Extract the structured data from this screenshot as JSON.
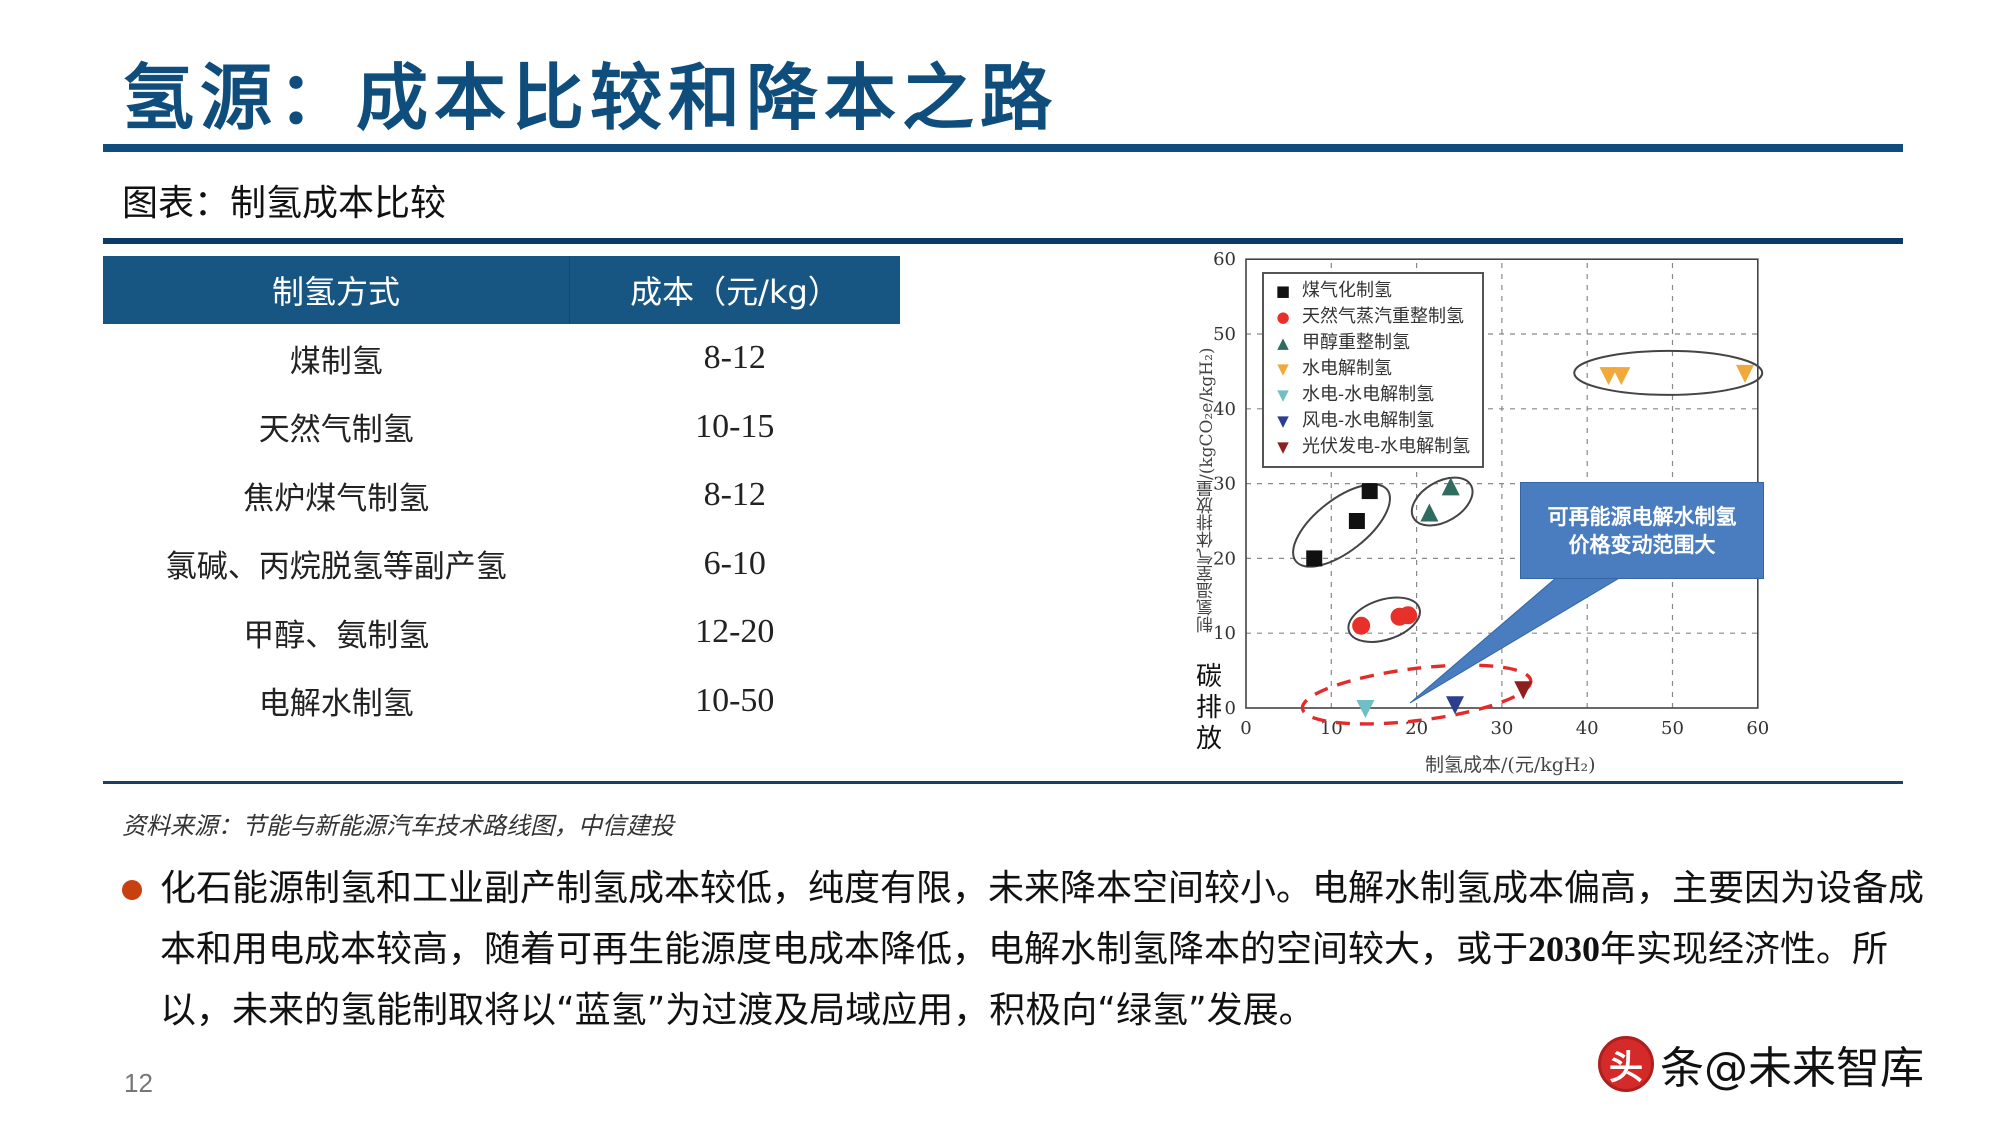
{
  "header": {
    "title": "氢源：成本比较和降本之路",
    "subtitle": "图表：制氢成本比较"
  },
  "table": {
    "columns": [
      "制氢方式",
      "成本（元/kg）"
    ],
    "rows": [
      {
        "method": "煤制氢",
        "cost": "8-12"
      },
      {
        "method": "天然气制氢",
        "cost": "10-15"
      },
      {
        "method": "焦炉煤气制氢",
        "cost": "8-12"
      },
      {
        "method": "氯碱、丙烷脱氢等副产氢",
        "cost": "6-10"
      },
      {
        "method": "甲醇、氨制氢",
        "cost": "12-20"
      },
      {
        "method": "电解水制氢",
        "cost": "10-50"
      }
    ]
  },
  "chart": {
    "y_axis_label": "制氢温室气体排放量/(kgCO₂e/kgH₂)",
    "carbon_label": [
      "碳",
      "排",
      "放"
    ],
    "x_axis_label": "制氢成本/(元/kgH₂)",
    "callout": [
      "可再能源电解水制氢",
      "价格变动范围大"
    ],
    "legend": [
      {
        "label": "煤气化制氢",
        "marker": "■",
        "color": "#111111"
      },
      {
        "label": "天然气蒸汽重整制氢",
        "marker": "●",
        "color": "#e8302b"
      },
      {
        "label": "甲醇重整制氢",
        "marker": "▲",
        "color": "#2f6b5e"
      },
      {
        "label": "水电解制氢",
        "marker": "▼",
        "color": "#f0a93a"
      },
      {
        "label": "水电-水电解制氢",
        "marker": "▼",
        "color": "#6fbfc6"
      },
      {
        "label": "风电-水电解制氢",
        "marker": "▼",
        "color": "#2b3f8f"
      },
      {
        "label": "光伏发电-水电解制氢",
        "marker": "▼",
        "color": "#8e1f1f"
      }
    ]
  },
  "chart_data": {
    "type": "scatter",
    "title": "",
    "xlabel": "制氢成本/(元/kgH₂)",
    "ylabel": "制氢温室气体排放量/(kgCO₂e/kgH₂)",
    "xlim": [
      0,
      60
    ],
    "ylim": [
      0,
      60
    ],
    "x_ticks": [
      0,
      10,
      20,
      30,
      40,
      50,
      60
    ],
    "y_ticks": [
      0,
      10,
      20,
      30,
      40,
      50,
      60
    ],
    "grid": true,
    "legend_position": "upper left",
    "series": [
      {
        "name": "煤气化制氢",
        "marker": "square",
        "color": "#111111",
        "points": [
          [
            8,
            20
          ],
          [
            13,
            25
          ],
          [
            14.5,
            29
          ]
        ]
      },
      {
        "name": "天然气蒸汽重整制氢",
        "marker": "circle",
        "color": "#e8302b",
        "points": [
          [
            13.5,
            11
          ],
          [
            18,
            12.2
          ],
          [
            19,
            12.4
          ]
        ]
      },
      {
        "name": "甲醇重整制氢",
        "marker": "triangle-up",
        "color": "#2f6b5e",
        "points": [
          [
            21.5,
            26
          ],
          [
            24,
            29.5
          ]
        ]
      },
      {
        "name": "水电解制氢",
        "marker": "triangle-down",
        "color": "#f0a93a",
        "points": [
          [
            42.5,
            44.5
          ],
          [
            44,
            44.5
          ],
          [
            58.5,
            44.8
          ]
        ]
      },
      {
        "name": "水电-水电解制氢",
        "marker": "triangle-down",
        "color": "#6fbfc6",
        "points": [
          [
            14,
            0
          ]
        ]
      },
      {
        "name": "风电-水电解制氢",
        "marker": "triangle-down",
        "color": "#2b3f8f",
        "points": [
          [
            24.5,
            0.5
          ]
        ]
      },
      {
        "name": "光伏发电-水电解制氢",
        "marker": "triangle-down",
        "color": "#8e1f1f",
        "points": [
          [
            32.5,
            2.5
          ]
        ]
      }
    ],
    "annotations": [
      {
        "type": "ellipse",
        "group": "煤气化制氢",
        "style": "solid"
      },
      {
        "type": "ellipse",
        "group": "天然气蒸汽重整制氢",
        "style": "solid"
      },
      {
        "type": "ellipse",
        "group": "甲醇重整制氢",
        "style": "solid"
      },
      {
        "type": "ellipse",
        "group": "水电解制氢",
        "style": "solid"
      },
      {
        "type": "ellipse",
        "group": "可再生能源电解水制氢",
        "style": "dashed-red"
      },
      {
        "type": "callout",
        "text": "可再能源电解水制氢 价格变动范围大"
      }
    ]
  },
  "source": "资料来源：节能与新能源汽车技术路线图，中信建投",
  "bullet": {
    "text_before_bold": "化石能源制氢和工业副产制氢成本较低，纯度有限，未来降本空间较小。电解水制氢成本偏高，主要因为设备成本和用电成本较高，随着可再生能源度电成本降低，电解水制氢降本的空间较大，或于",
    "bold": "2030",
    "text_after_bold": "年实现经济性。所以，未来的氢能制取将以“蓝氢”为过渡及局域应用，积极向“绿氢”发展。"
  },
  "footer": {
    "page_number": "12",
    "watermark_logo": "头",
    "watermark_text": "条@未来智库"
  },
  "colors": {
    "brand_blue": "#0e4d7c",
    "table_header": "#175683",
    "bullet": "#c8400f",
    "callout": "#4a7dbf"
  }
}
